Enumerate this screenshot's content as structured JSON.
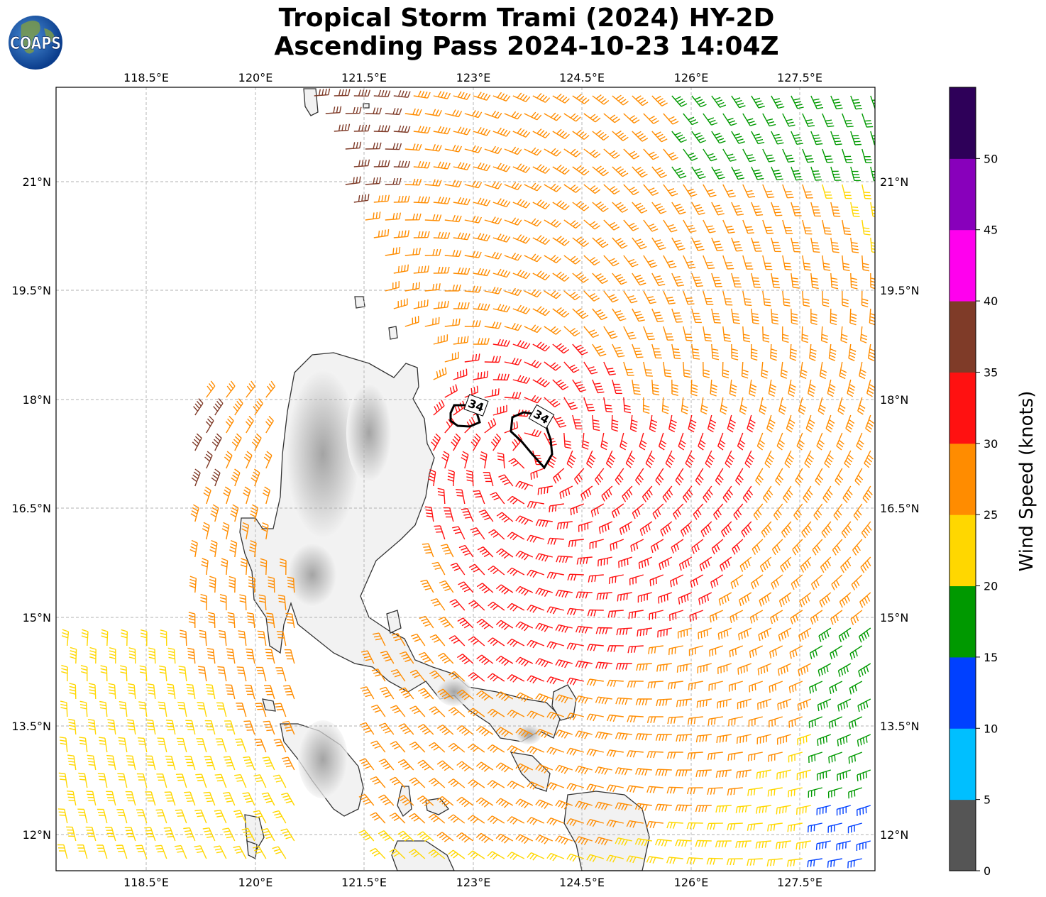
{
  "header": {
    "title_line1": "Tropical Storm Trami (2024) HY-2D",
    "title_line2": "Ascending Pass 2024-10-23 14:04Z",
    "logo_text": "COAPS"
  },
  "map": {
    "lon_ticks": [
      "118.5°E",
      "120°E",
      "121.5°E",
      "123°E",
      "124.5°E",
      "126°E",
      "127.5°E"
    ],
    "lat_ticks": [
      "21°N",
      "19.5°N",
      "18°N",
      "16.5°N",
      "15°N",
      "13.5°N",
      "12°N"
    ],
    "contour_labels": [
      "34",
      "34"
    ],
    "gridlines": true
  },
  "colorbar": {
    "label": "Wind Speed (knots)",
    "ticks": [
      "0",
      "5",
      "10",
      "15",
      "20",
      "25",
      "30",
      "35",
      "40",
      "45",
      "50"
    ],
    "bins": [
      {
        "range": "0-5",
        "color": "#555555"
      },
      {
        "range": "5-10",
        "color": "#00bfff"
      },
      {
        "range": "10-15",
        "color": "#0040ff"
      },
      {
        "range": "15-20",
        "color": "#009900"
      },
      {
        "range": "20-25",
        "color": "#ffd700"
      },
      {
        "range": "25-30",
        "color": "#ff8c00"
      },
      {
        "range": "30-35",
        "color": "#ff1111"
      },
      {
        "range": "35-40",
        "color": "#7f3b28"
      },
      {
        "range": "40-45",
        "color": "#ff00ee"
      },
      {
        "range": "45-50",
        "color": "#8800bb"
      },
      {
        "range": "50+",
        "color": "#2e0059"
      }
    ]
  }
}
